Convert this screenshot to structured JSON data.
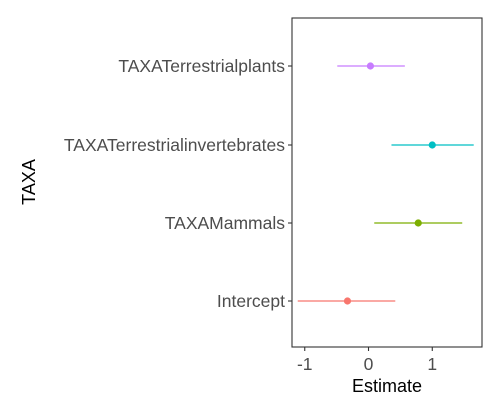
{
  "chart_data": {
    "type": "forest",
    "title": "",
    "xlabel": "Estimate",
    "ylabel": "TAXA",
    "xlim": [
      -1.2,
      1.78
    ],
    "x_ticks": [
      -1,
      0,
      1
    ],
    "x_tick_labels": [
      "-1",
      "0",
      "1"
    ],
    "grid": false,
    "legend": "none",
    "series": [
      {
        "category": "TAXATerrestrialplants",
        "estimate": 0.03,
        "lower": -0.49,
        "upper": 0.57,
        "color": "#C77CFF"
      },
      {
        "category": "TAXATerrestrialinvertebrates",
        "estimate": 1.0,
        "lower": 0.36,
        "upper": 1.65,
        "color": "#00BFC4"
      },
      {
        "category": "TAXAMammals",
        "estimate": 0.78,
        "lower": 0.09,
        "upper": 1.47,
        "color": "#7CAE00"
      },
      {
        "category": "Intercept",
        "estimate": -0.33,
        "lower": -1.11,
        "upper": 0.42,
        "color": "#F8766D"
      }
    ]
  }
}
